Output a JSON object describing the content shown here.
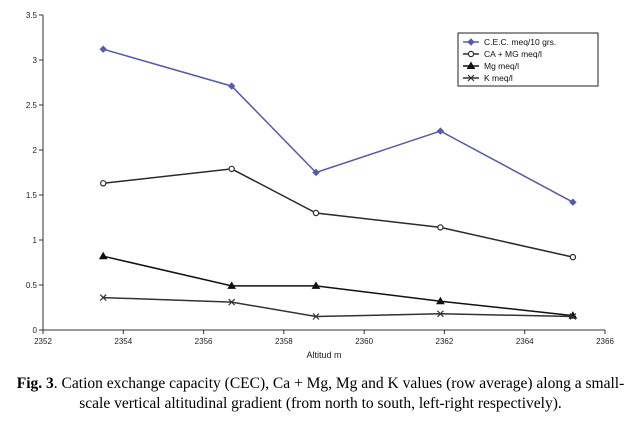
{
  "chart_data": {
    "type": "line",
    "title": "",
    "xlabel": "Altitud m",
    "ylabel": "",
    "x_tick_labels": [
      "2352",
      "2354",
      "2356",
      "2358",
      "2360",
      "2362",
      "2364",
      "2366"
    ],
    "y_tick_labels": [
      "0",
      "0.5",
      "1",
      "1.5",
      "2",
      "2.5",
      "3",
      "3.5"
    ],
    "xlim": [
      2352,
      2366
    ],
    "ylim": [
      0,
      3.5
    ],
    "x": [
      2353.5,
      2356.7,
      2358.8,
      2361.9,
      2365.2
    ],
    "series": [
      {
        "name": "C.E.C. meq/10 grs.",
        "values": [
          3.12,
          2.71,
          1.75,
          2.21,
          1.42
        ],
        "color": "#5a5aa8",
        "marker": "diamond"
      },
      {
        "name": "CA + MG meq/l",
        "values": [
          1.63,
          1.79,
          1.3,
          1.14,
          0.81
        ],
        "color": "#2a2a2a",
        "marker": "circle-open"
      },
      {
        "name": "Mg meq/l",
        "values": [
          0.82,
          0.49,
          0.49,
          0.32,
          0.16
        ],
        "color": "#111111",
        "marker": "triangle"
      },
      {
        "name": "K meq/l",
        "values": [
          0.36,
          0.31,
          0.15,
          0.18,
          0.15
        ],
        "color": "#333333",
        "marker": "x"
      }
    ],
    "legend_position": "top-right",
    "grid": false
  },
  "caption": {
    "label": "Fig. 3",
    "text": ". Cation exchange capacity (CEC), Ca + Mg, Mg and K values (row average) along a small-scale vertical altitudinal gradient (from north to south, left-right respectively)."
  }
}
